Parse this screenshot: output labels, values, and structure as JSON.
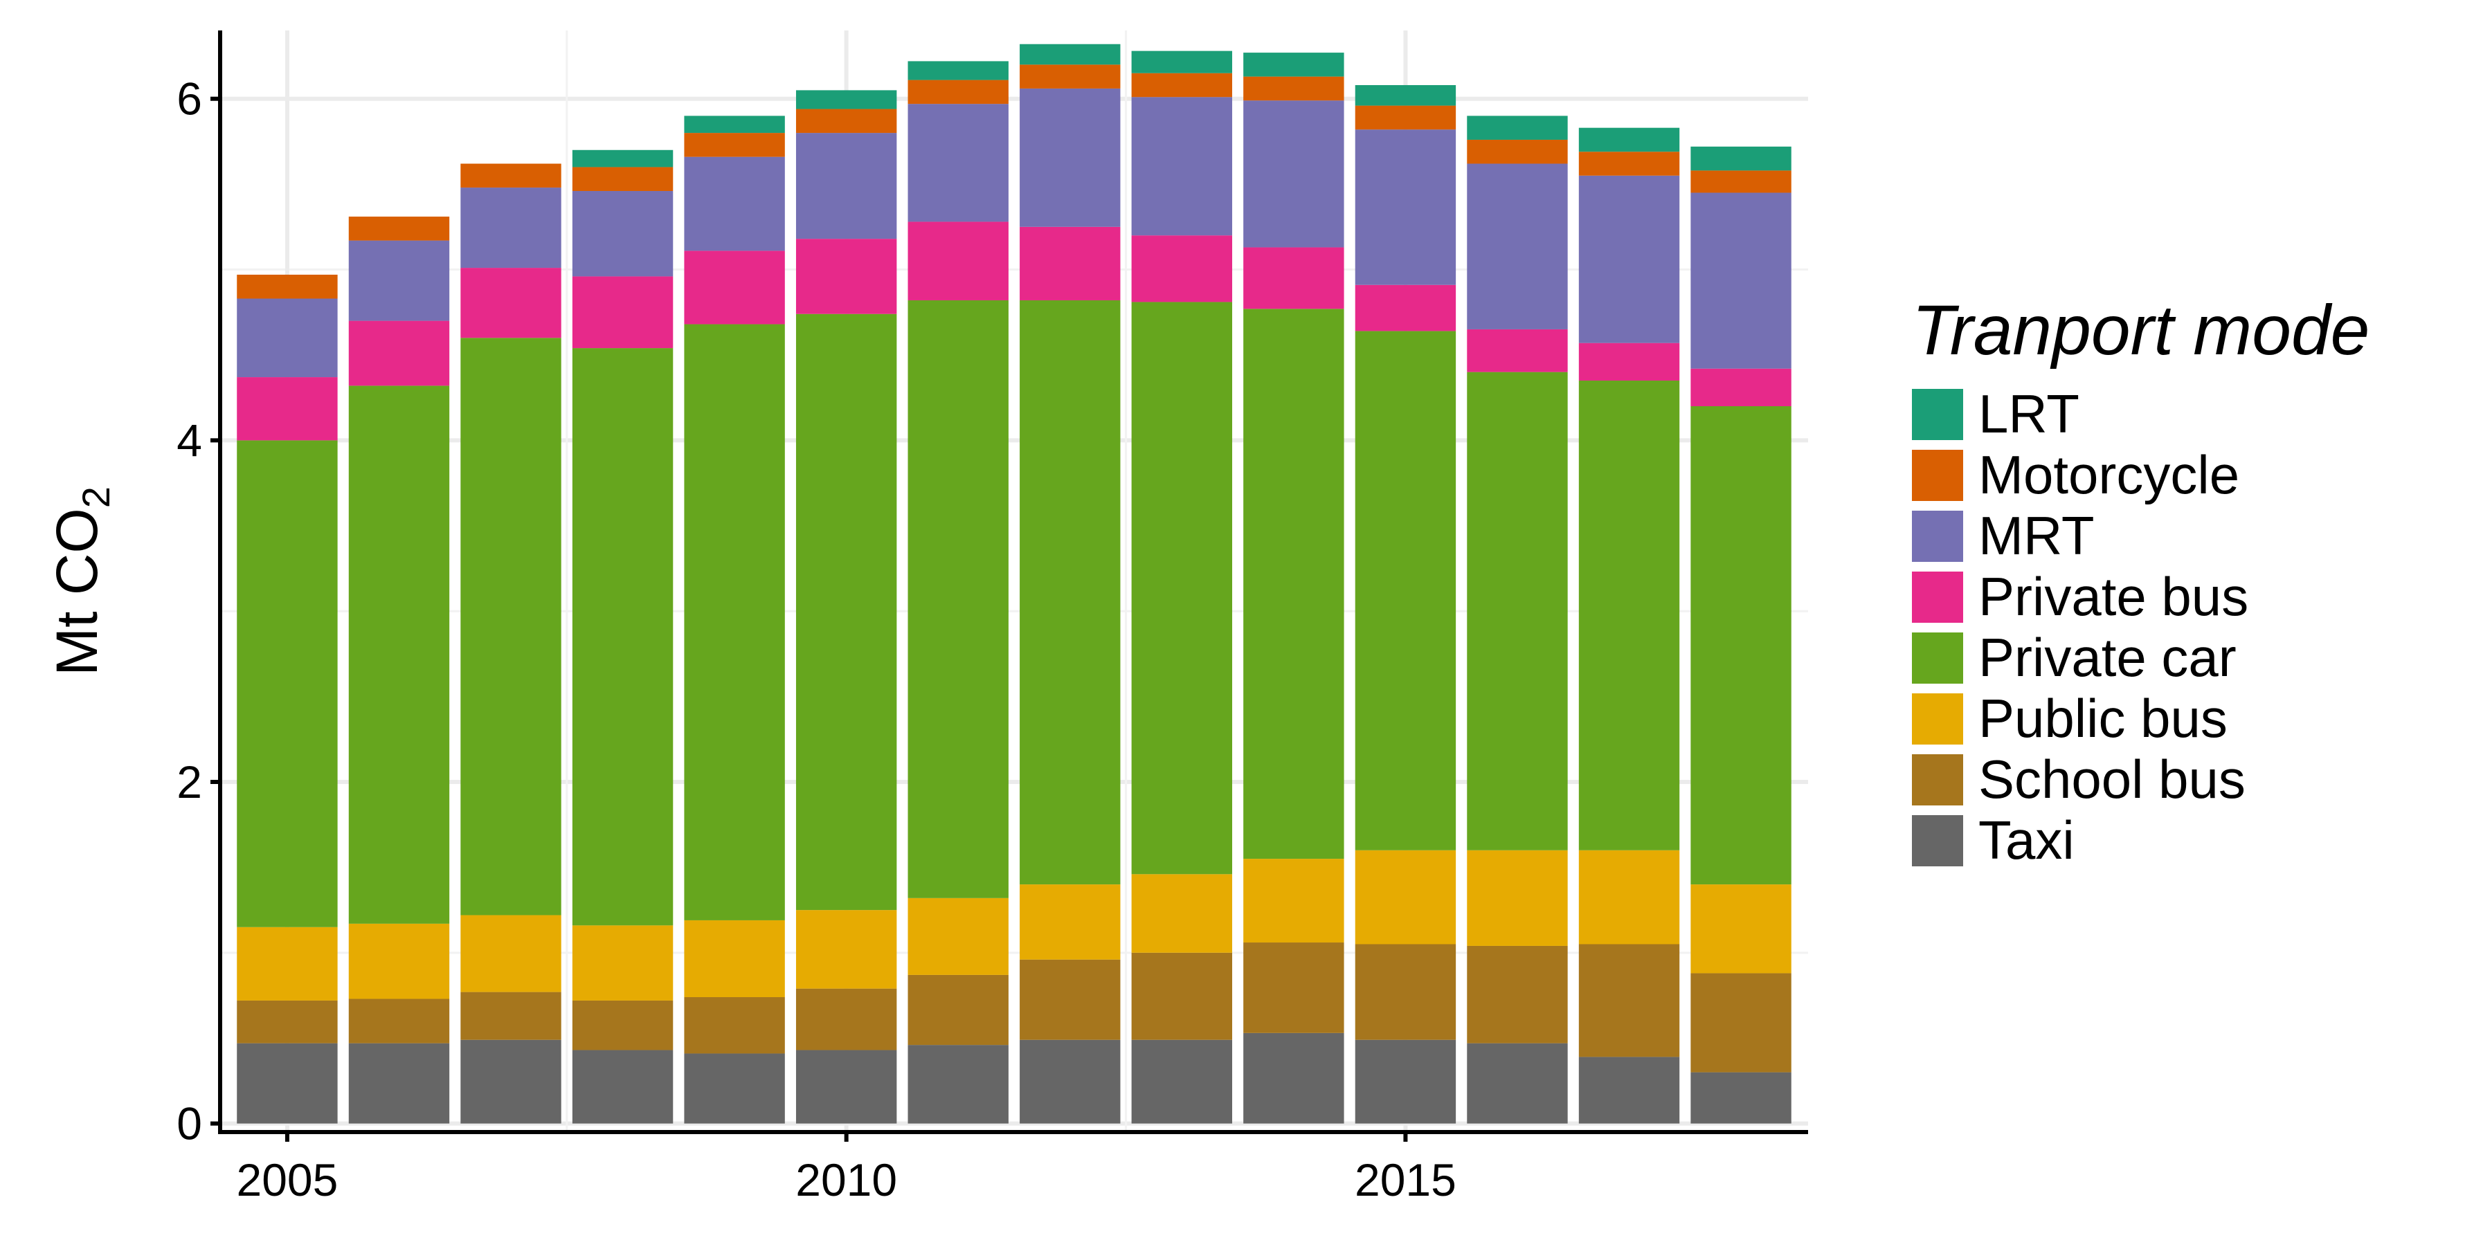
{
  "chart_data": {
    "type": "bar",
    "stacked": true,
    "title": "",
    "xlabel": "",
    "ylabel": "Mt CO",
    "ylabel_subscript": "2",
    "xlim": [
      2004.4,
      2018.6
    ],
    "ylim": [
      -0.05,
      6.4
    ],
    "x_ticks": [
      2005,
      2010,
      2015
    ],
    "y_ticks": [
      0,
      2,
      4,
      6
    ],
    "grid": true,
    "legend_position": "right",
    "legend_title": "Tranport mode",
    "categories": [
      2005,
      2006,
      2007,
      2008,
      2009,
      2010,
      2011,
      2012,
      2013,
      2014,
      2015,
      2016,
      2017,
      2018
    ],
    "series": [
      {
        "name": "Taxi",
        "color": "#666666",
        "values": [
          0.47,
          0.47,
          0.49,
          0.43,
          0.41,
          0.43,
          0.46,
          0.49,
          0.49,
          0.53,
          0.49,
          0.47,
          0.39,
          0.3
        ]
      },
      {
        "name": "School bus",
        "color": "#A6761D",
        "values": [
          0.25,
          0.26,
          0.28,
          0.29,
          0.33,
          0.36,
          0.41,
          0.47,
          0.51,
          0.53,
          0.56,
          0.57,
          0.66,
          0.58
        ]
      },
      {
        "name": "Public bus",
        "color": "#E6AB02",
        "values": [
          0.43,
          0.44,
          0.45,
          0.44,
          0.45,
          0.46,
          0.45,
          0.44,
          0.46,
          0.49,
          0.55,
          0.56,
          0.55,
          0.52
        ]
      },
      {
        "name": "Private car",
        "color": "#66A61E",
        "values": [
          2.85,
          3.15,
          3.38,
          3.38,
          3.49,
          3.49,
          3.5,
          3.42,
          3.35,
          3.22,
          3.04,
          2.8,
          2.75,
          2.8
        ]
      },
      {
        "name": "Private bus",
        "color": "#E7298A",
        "values": [
          0.37,
          0.38,
          0.41,
          0.42,
          0.43,
          0.44,
          0.46,
          0.43,
          0.39,
          0.36,
          0.27,
          0.25,
          0.22,
          0.22
        ]
      },
      {
        "name": "MRT",
        "color": "#7570B3",
        "values": [
          0.46,
          0.47,
          0.47,
          0.5,
          0.55,
          0.62,
          0.69,
          0.81,
          0.81,
          0.86,
          0.91,
          0.97,
          0.98,
          1.03
        ]
      },
      {
        "name": "Motorcycle",
        "color": "#D95F02",
        "values": [
          0.14,
          0.14,
          0.14,
          0.14,
          0.14,
          0.14,
          0.14,
          0.14,
          0.14,
          0.14,
          0.14,
          0.14,
          0.14,
          0.13
        ]
      },
      {
        "name": "LRT",
        "color": "#1B9E77",
        "values": [
          0.0,
          0.0,
          0.0,
          0.1,
          0.1,
          0.11,
          0.11,
          0.12,
          0.13,
          0.14,
          0.12,
          0.14,
          0.14,
          0.14
        ]
      }
    ],
    "legend_order": [
      "LRT",
      "Motorcycle",
      "MRT",
      "Private bus",
      "Private car",
      "Public bus",
      "School bus",
      "Taxi"
    ]
  }
}
